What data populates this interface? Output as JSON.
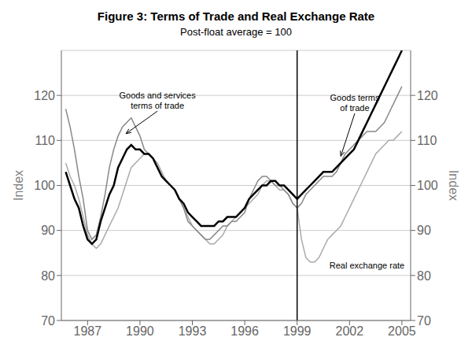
{
  "chart_data": {
    "type": "line",
    "title": "Figure 3: Terms of Trade and Real Exchange Rate",
    "subtitle": "Post-float average = 100",
    "ylabel": "Index",
    "y2label": "Index",
    "x": [
      1985.75,
      1986.0,
      1986.25,
      1986.5,
      1986.75,
      1987.0,
      1987.25,
      1987.5,
      1987.75,
      1988.0,
      1988.25,
      1988.5,
      1988.75,
      1989.0,
      1989.25,
      1989.5,
      1989.75,
      1990.0,
      1990.25,
      1990.5,
      1990.75,
      1991.0,
      1991.25,
      1991.5,
      1991.75,
      1992.0,
      1992.25,
      1992.5,
      1992.75,
      1993.0,
      1993.25,
      1993.5,
      1993.75,
      1994.0,
      1994.25,
      1994.5,
      1994.75,
      1995.0,
      1995.25,
      1995.5,
      1995.75,
      1996.0,
      1996.25,
      1996.5,
      1996.75,
      1997.0,
      1997.25,
      1997.5,
      1997.75,
      1998.0,
      1998.25,
      1998.5,
      1998.75,
      1999.0,
      1999.25,
      1999.5,
      1999.75,
      2000.0,
      2000.25,
      2000.5,
      2000.75,
      2001.0,
      2001.25,
      2001.5,
      2001.75,
      2002.0,
      2002.25,
      2002.5,
      2002.75,
      2003.0,
      2003.25,
      2003.5,
      2003.75,
      2004.0,
      2004.25,
      2004.5,
      2004.75,
      2005.0
    ],
    "series": [
      {
        "color": "#aaaaaa",
        "values": [
          105,
          102,
          100,
          97,
          93,
          89,
          87,
          86,
          87,
          89,
          91,
          93,
          95,
          98,
          101,
          104,
          105,
          106,
          107,
          107,
          106,
          105,
          103,
          101,
          100,
          99,
          97,
          95,
          93,
          91,
          90,
          89,
          88,
          87,
          87,
          88,
          89,
          91,
          92,
          93,
          94,
          95,
          96,
          97,
          98,
          100,
          101,
          101,
          100,
          99,
          99,
          98,
          96,
          95,
          88,
          84,
          83,
          83,
          84,
          86,
          88,
          89,
          90,
          91,
          93,
          95,
          97,
          99,
          101,
          103,
          105,
          107,
          108,
          109,
          110,
          110,
          111,
          112
        ]
      },
      {
        "color": "#888888",
        "values": [
          117,
          113,
          108,
          102,
          97,
          90,
          88,
          89,
          93,
          98,
          104,
          108,
          111,
          113,
          114,
          115,
          113,
          111,
          108,
          107,
          106,
          104,
          102,
          101,
          100,
          99,
          97,
          95,
          92,
          91,
          90,
          89,
          88,
          88,
          89,
          90,
          91,
          91,
          92,
          92,
          93,
          94,
          97,
          99,
          101,
          102,
          102,
          101,
          100,
          100,
          99,
          98,
          96,
          95,
          96,
          98,
          99,
          100,
          101,
          102,
          102,
          102,
          103,
          105,
          107,
          108,
          109,
          110,
          111,
          112,
          112,
          112,
          113,
          114,
          116,
          118,
          120,
          122
        ]
      },
      {
        "color": "#000000",
        "values": [
          103,
          100,
          97,
          95,
          91,
          88,
          87,
          88,
          92,
          95,
          98,
          100,
          104,
          106,
          108,
          109,
          108,
          108,
          107,
          107,
          106,
          104,
          102,
          101,
          100,
          99,
          97,
          96,
          94,
          93,
          92,
          91,
          91,
          91,
          91,
          92,
          92,
          93,
          93,
          93,
          94,
          95,
          97,
          98,
          99,
          100,
          100,
          101,
          101,
          100,
          100,
          99,
          98,
          97,
          98,
          99,
          100,
          101,
          102,
          103,
          103,
          103,
          104,
          105,
          106,
          107,
          108,
          110,
          112,
          114,
          116,
          118,
          120,
          122,
          124,
          126,
          128,
          130
        ]
      }
    ],
    "xlim": [
      1985.5,
      2005.5
    ],
    "xticks": [
      1987,
      1990,
      1993,
      1996,
      1999,
      2002,
      2005
    ],
    "ylim": [
      70,
      130
    ],
    "yticks": [
      70,
      80,
      90,
      100,
      110,
      120
    ],
    "y2lim": [
      70,
      130
    ],
    "y2ticks": [
      70,
      80,
      90,
      100,
      110,
      120
    ],
    "grid": true,
    "vline_x": 1999,
    "annotations": [
      {
        "text": "Goods and services\nterms of trade",
        "x": 1989.2,
        "y": 111.5,
        "text_x": 1991.0,
        "text_y": 116.5,
        "arrow": true
      },
      {
        "text": "Goods terms\nof trade",
        "x": 2001.5,
        "y": 106.5,
        "text_x": 2002.3,
        "text_y": 116.0,
        "arrow": true
      },
      {
        "text": "Real exchange rate",
        "x": 2003.0,
        "y": 83.5
      }
    ]
  }
}
